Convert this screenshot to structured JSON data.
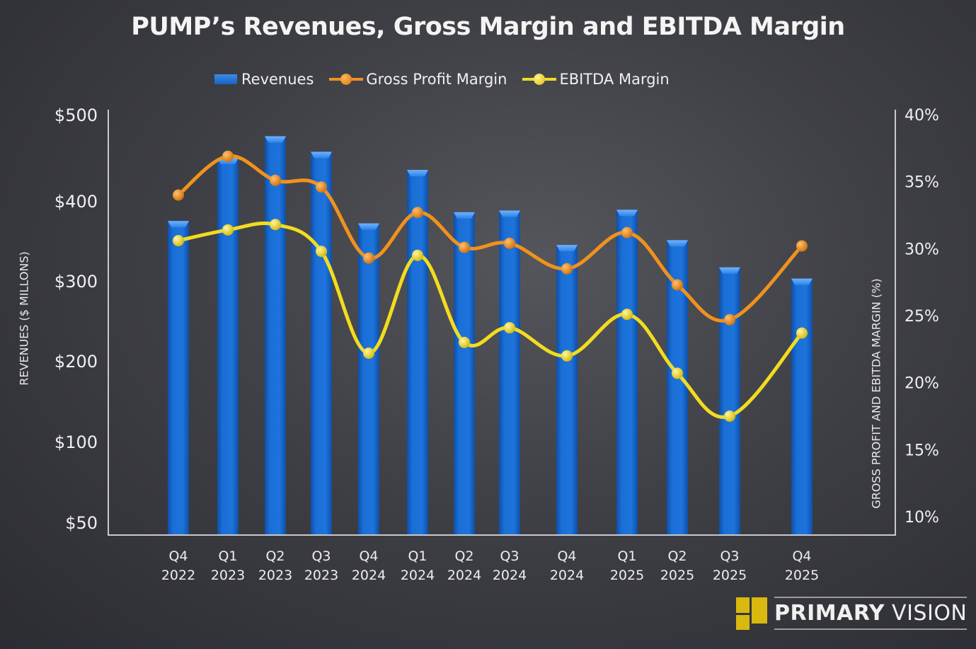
{
  "chart_data": {
    "type": "bar",
    "title": "PUMP’s Revenues, Gross Margin and EBITDA Margin",
    "categories": [
      [
        "Q4",
        "2022"
      ],
      [
        "Q1",
        "2023"
      ],
      [
        "Q2",
        "2023"
      ],
      [
        "Q3",
        "2023"
      ],
      [
        "Q4",
        "2024"
      ],
      [
        "Q1",
        "2024"
      ],
      [
        "Q2",
        "2024"
      ],
      [
        "Q3",
        "2024"
      ],
      [
        "Q4",
        "2024"
      ],
      [
        "Q1",
        "2025"
      ],
      [
        "Q2",
        "2025"
      ],
      [
        "Q3",
        "2025"
      ],
      [
        "Q4",
        "2025"
      ]
    ],
    "ylabel": "REVENUES ($ MILLONS)",
    "ylabel_right": "GROSS PROFIT AND EBITDA MARGIN (%)",
    "yticks_left": [
      "$500",
      "$400",
      "$300",
      "$200",
      "$100",
      "$50"
    ],
    "yticks_left_values": [
      500,
      400,
      300,
      200,
      100,
      50
    ],
    "yticks_right": [
      "40%",
      "35%",
      "30%",
      "25%",
      "20%",
      "15%",
      "10%"
    ],
    "yticks_right_values": [
      40,
      35,
      30,
      25,
      20,
      15,
      10
    ],
    "ylim_right": [
      10,
      40
    ],
    "legend_position": "top",
    "grid": false,
    "series": [
      {
        "name": "Revenues",
        "type": "bar",
        "axis": "left",
        "color": "#1a6fd6",
        "values": [
          375,
          450,
          475,
          457,
          372,
          436,
          386,
          388,
          345,
          389,
          351,
          317,
          303
        ]
      },
      {
        "name": "Gross Profit Margin",
        "type": "line",
        "axis": "right",
        "color": "#f0921e",
        "values": [
          34.0,
          36.9,
          35.1,
          34.6,
          29.3,
          32.7,
          30.1,
          30.4,
          28.5,
          31.2,
          27.3,
          24.7,
          30.2
        ]
      },
      {
        "name": "EBITDA Margin",
        "type": "line",
        "axis": "right",
        "color": "#f2dc1f",
        "values": [
          30.6,
          31.4,
          31.8,
          29.8,
          22.2,
          29.5,
          23.0,
          24.1,
          22.0,
          25.1,
          20.7,
          17.5,
          23.7
        ]
      }
    ]
  },
  "legend": {
    "revenues": "Revenues",
    "gross": "Gross Profit Margin",
    "ebitda": "EBITDA Margin"
  },
  "logo": {
    "bold": "PRIMARY",
    "light": " VISION",
    "color": "#d9b80f"
  }
}
